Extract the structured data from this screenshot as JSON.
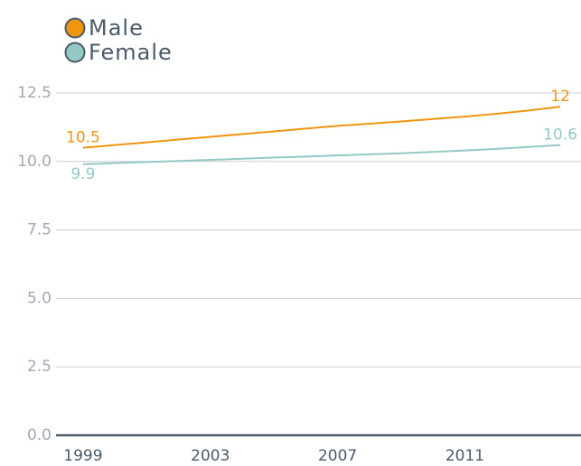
{
  "chart_data": {
    "type": "line",
    "x": [
      1999,
      2000,
      2001,
      2002,
      2003,
      2004,
      2005,
      2006,
      2007,
      2008,
      2009,
      2010,
      2011,
      2012,
      2013,
      2014
    ],
    "series": [
      {
        "name": "Male",
        "color": "#f0950f",
        "values": [
          10.5,
          10.6,
          10.7,
          10.8,
          10.9,
          11.0,
          11.1,
          11.2,
          11.3,
          11.38,
          11.46,
          11.55,
          11.64,
          11.74,
          11.86,
          12
        ]
      },
      {
        "name": "Female",
        "color": "#94c9c4",
        "values": [
          9.9,
          9.94,
          9.98,
          10.02,
          10.06,
          10.1,
          10.14,
          10.18,
          10.22,
          10.26,
          10.3,
          10.35,
          10.4,
          10.46,
          10.53,
          10.6
        ]
      }
    ],
    "xlim": [
      1998.15,
      2014.65
    ],
    "xticks": [
      1999,
      2003,
      2007,
      2011
    ],
    "ylim": [
      0,
      12.5
    ],
    "yticks": [
      {
        "value": 0,
        "label": "0.0"
      },
      2.5,
      {
        "value": 5,
        "label": "5.0"
      },
      7.5,
      {
        "value": 10,
        "label": "10.0"
      },
      12.5
    ],
    "grid": true,
    "legend": "top-left"
  }
}
